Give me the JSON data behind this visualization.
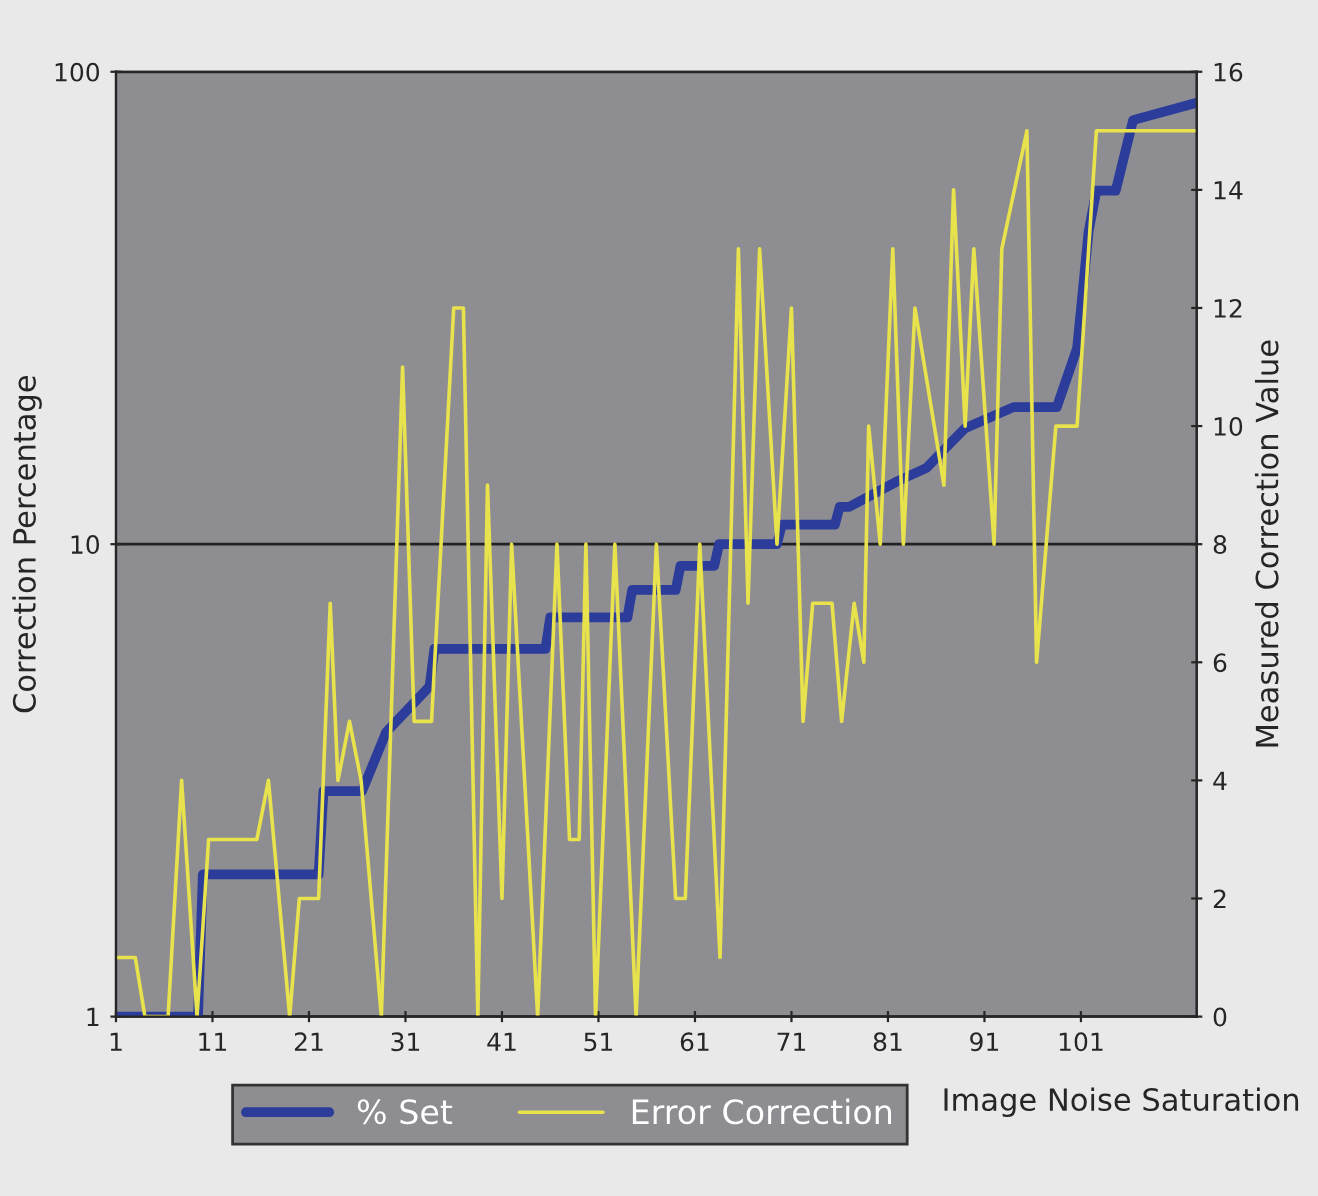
{
  "chart_data": {
    "type": "line",
    "xlabel": "Image Noise Saturation",
    "ylabel": "Correction Percentage",
    "y2label": "Measured Correction Value",
    "log": "y",
    "grid": "y",
    "legend": "bottom",
    "marker": "none",
    "line_style": "solid",
    "xlim": [
      1,
      113
    ],
    "xticks": [
      1,
      11,
      21,
      31,
      41,
      51,
      61,
      71,
      81,
      91,
      101
    ],
    "ylim": [
      1,
      100
    ],
    "yticks": [
      1,
      10,
      100
    ],
    "y2lim": [
      0,
      16
    ],
    "y2ticks": [
      0,
      2,
      4,
      6,
      8,
      10,
      12,
      14,
      16
    ],
    "series": [
      {
        "name": "% Set",
        "color": "#2b3c9a",
        "x": [
          1,
          9.5,
          10,
          22,
          22.5,
          26.5,
          29,
          33.5,
          34,
          45.5,
          46,
          54,
          54.5,
          59,
          59.5,
          63,
          63.5,
          69.5,
          70,
          75.5,
          76,
          77,
          82,
          85,
          87,
          89,
          94,
          98.5,
          100.6,
          101.8,
          102.6,
          104.6,
          106.4,
          113
        ],
        "values": [
          1,
          1,
          2,
          2,
          3,
          3,
          4,
          5,
          6,
          6,
          7,
          7,
          8,
          8,
          9,
          9,
          10,
          10,
          11,
          11,
          12,
          12,
          13.6,
          14.5,
          16,
          17.6,
          19.5,
          19.5,
          26,
          46,
          56,
          56,
          79,
          86
        ]
      },
      {
        "name": "Error Correction",
        "color": "#e8e24c",
        "axis": "y2",
        "x": [
          1,
          3,
          4,
          6.4,
          7.8,
          9.4,
          10.6,
          15.6,
          16.8,
          19,
          20,
          22,
          23.2,
          24,
          25.2,
          26.4,
          28.5,
          30.7,
          31.9,
          33.7,
          36,
          37,
          38.5,
          39.5,
          41,
          42,
          44.7,
          46.7,
          48,
          49,
          49.7,
          50.7,
          52.7,
          54.9,
          57,
          59,
          60,
          61.5,
          63.6,
          65.5,
          66.5,
          67.7,
          69.5,
          71,
          72.2,
          73.2,
          75.2,
          76.2,
          77.5,
          78.5,
          79,
          80.2,
          81.5,
          82.6,
          83.8,
          86.8,
          87.8,
          89,
          89.9,
          92,
          92.8,
          95.4,
          96.4,
          98.4,
          100.6,
          102.6,
          112.8
        ],
        "values": [
          1,
          1,
          0,
          0,
          4,
          0,
          3,
          3,
          4,
          0,
          2,
          2,
          7,
          4,
          5,
          4,
          0,
          11,
          5,
          5,
          12,
          12,
          0,
          9,
          2,
          8,
          0,
          8,
          3,
          3,
          8,
          0,
          8,
          0,
          8,
          2,
          2,
          8,
          1,
          13,
          7,
          13,
          8,
          12,
          5,
          7,
          7,
          5,
          7,
          6,
          10,
          8,
          13,
          8,
          12,
          9,
          14,
          10,
          13,
          8,
          13,
          15,
          6,
          10,
          10,
          15,
          15
        ]
      }
    ]
  }
}
